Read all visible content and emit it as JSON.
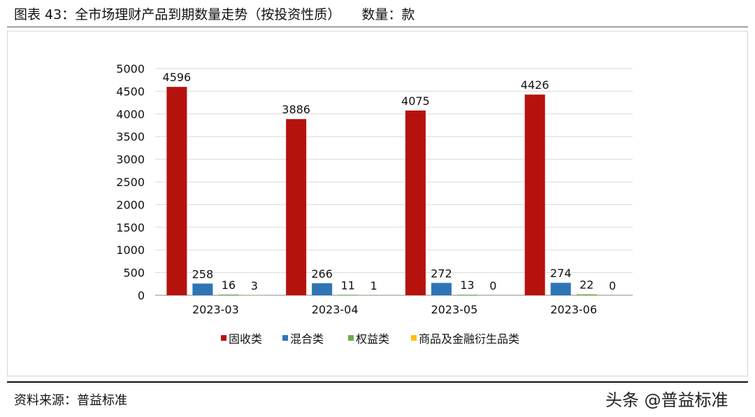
{
  "header": {
    "title": "图表 43：全市场理财产品到期数量走势（按投资性质）",
    "unit": "数量：款"
  },
  "footer": {
    "source": "资料来源：普益标准",
    "watermark": "头条 @普益标准"
  },
  "chart_data": {
    "type": "bar",
    "title": "",
    "xlabel": "",
    "ylabel": "",
    "ylim": [
      0,
      5000
    ],
    "yticks": [
      0,
      500,
      1000,
      1500,
      2000,
      2500,
      3000,
      3500,
      4000,
      4500,
      5000
    ],
    "grid": true,
    "legend_position": "bottom",
    "categories": [
      "2023-03",
      "2023-04",
      "2023-05",
      "2023-06"
    ],
    "series": [
      {
        "name": "固收类",
        "color": "#b5120e",
        "values": [
          4596,
          3886,
          4075,
          4426
        ]
      },
      {
        "name": "混合类",
        "color": "#2e75b6",
        "values": [
          258,
          266,
          272,
          274
        ]
      },
      {
        "name": "权益类",
        "color": "#70ad47",
        "values": [
          16,
          11,
          13,
          22
        ]
      },
      {
        "name": "商品及金融衍生品类",
        "color": "#ffc000",
        "values": [
          3,
          1,
          0,
          0
        ]
      }
    ]
  }
}
